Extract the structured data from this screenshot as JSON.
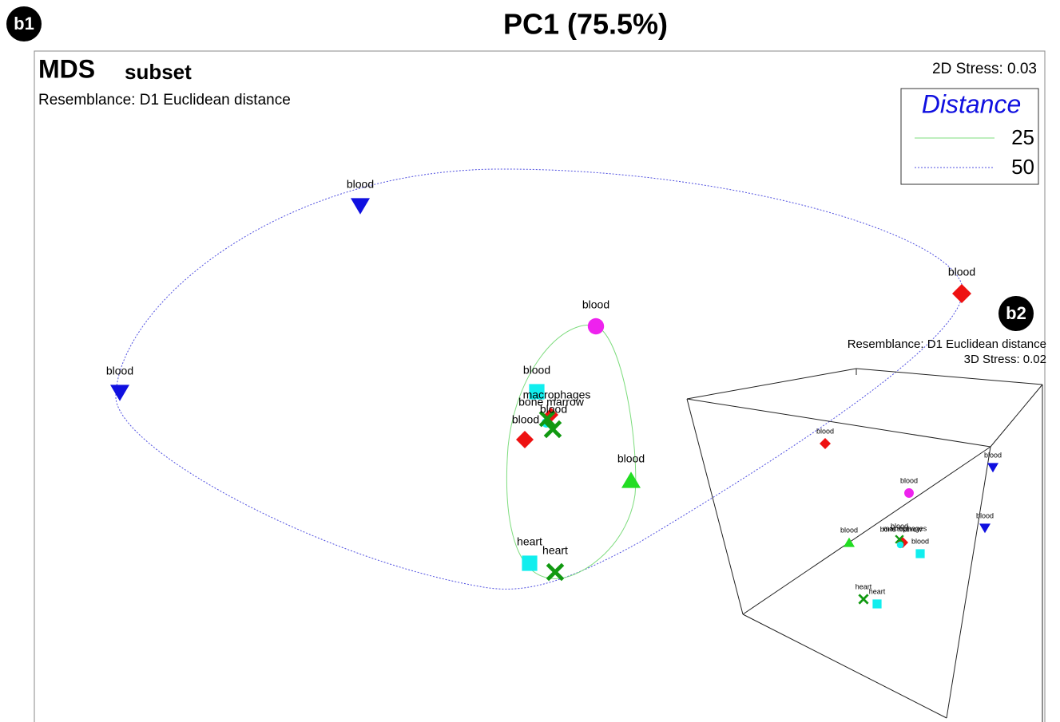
{
  "panel_label": "b1",
  "title": "PC1 (75.5%)",
  "plot": {
    "title_main": "MDS",
    "title_sub": "subset",
    "resemblance": "Resemblance: D1 Euclidean distance",
    "stress": "2D Stress: 0.03",
    "legend": {
      "title": "Distance",
      "entries": [
        "25",
        "50"
      ]
    },
    "points": [
      {
        "label": "blood"
      },
      {
        "label": "blood"
      },
      {
        "label": "blood"
      },
      {
        "label": "blood"
      },
      {
        "label": "blood"
      },
      {
        "label": "blood"
      },
      {
        "label": "heart"
      },
      {
        "label": "heart"
      }
    ],
    "cluster_labels": [
      "macrophages",
      "bone marrow",
      "blood",
      "blood"
    ]
  },
  "inset": {
    "panel_label": "b2",
    "resemblance": "Resemblance: D1 Euclidean distance",
    "stress": "3D Stress: 0.02",
    "points": [
      {
        "label": "blood"
      },
      {
        "label": "blood"
      },
      {
        "label": "blood"
      },
      {
        "label": "blood"
      },
      {
        "label": "blood"
      },
      {
        "label": "blood"
      },
      {
        "label": "heart"
      },
      {
        "label": "heart"
      }
    ],
    "cluster_labels": [
      "blood",
      "bone marrow",
      "macrophages"
    ]
  }
}
